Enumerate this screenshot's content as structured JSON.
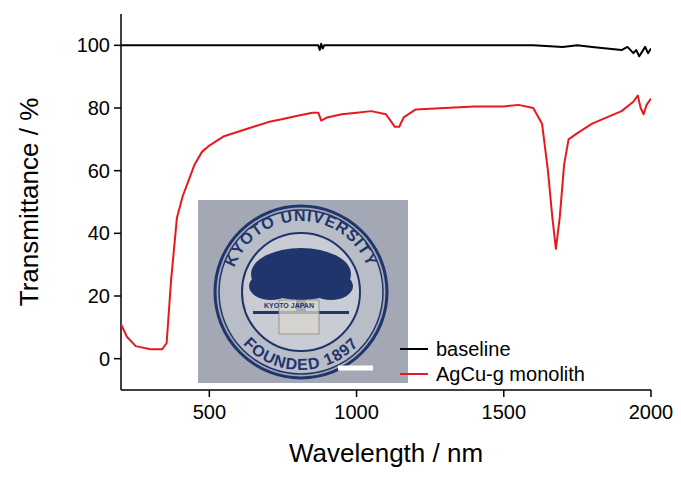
{
  "chart_data": {
    "type": "line",
    "x_label": "Wavelength / nm",
    "y_label": "Transmittance / %",
    "xlim": [
      200,
      2000
    ],
    "ylim": [
      -10,
      110
    ],
    "xticks": [
      500,
      1000,
      1500,
      2000
    ],
    "yticks": [
      0,
      20,
      40,
      60,
      80,
      100
    ],
    "legend": "lower right",
    "annotations": [
      "KYOTO UNIVERSITY",
      "FOUNDED 1897",
      "KYOTO JAPAN"
    ],
    "series": [
      {
        "name": "baseline",
        "color": "#000000",
        "x": [
          200,
          400,
          600,
          800,
          870,
          875,
          880,
          885,
          890,
          1000,
          1200,
          1400,
          1600,
          1700,
          1750,
          1800,
          1850,
          1900,
          1920,
          1940,
          1950,
          1960,
          1970,
          1980,
          1990,
          2000
        ],
        "values": [
          100,
          100,
          100,
          100,
          100,
          98.5,
          100.5,
          99,
          100,
          100,
          100,
          100,
          100,
          99.5,
          100,
          99.5,
          99,
          98.5,
          99.5,
          97.5,
          98.5,
          96.5,
          98,
          99.5,
          97.5,
          99
        ]
      },
      {
        "name": "AgCu-g monolith",
        "color": "#e8191e",
        "x": [
          200,
          220,
          250,
          300,
          340,
          355,
          370,
          390,
          410,
          430,
          450,
          475,
          500,
          550,
          600,
          650,
          700,
          750,
          800,
          850,
          870,
          880,
          900,
          950,
          1000,
          1050,
          1100,
          1130,
          1145,
          1160,
          1200,
          1300,
          1400,
          1500,
          1550,
          1600,
          1630,
          1650,
          1665,
          1677,
          1690,
          1705,
          1720,
          1750,
          1800,
          1850,
          1900,
          1940,
          1955,
          1965,
          1975,
          1985,
          2000
        ],
        "values": [
          11,
          7,
          4,
          3,
          3,
          5,
          25,
          45,
          52,
          57,
          62,
          66,
          68,
          71,
          72.5,
          74,
          75.5,
          76.5,
          77.5,
          78.5,
          78.5,
          76,
          77,
          78,
          78.5,
          79,
          78,
          74,
          74,
          77,
          79.5,
          80,
          80.5,
          80.5,
          81,
          80,
          75,
          60,
          45,
          35,
          45,
          62,
          70,
          72,
          75,
          77,
          79,
          82,
          84,
          80,
          78,
          81,
          83
        ]
      }
    ]
  }
}
